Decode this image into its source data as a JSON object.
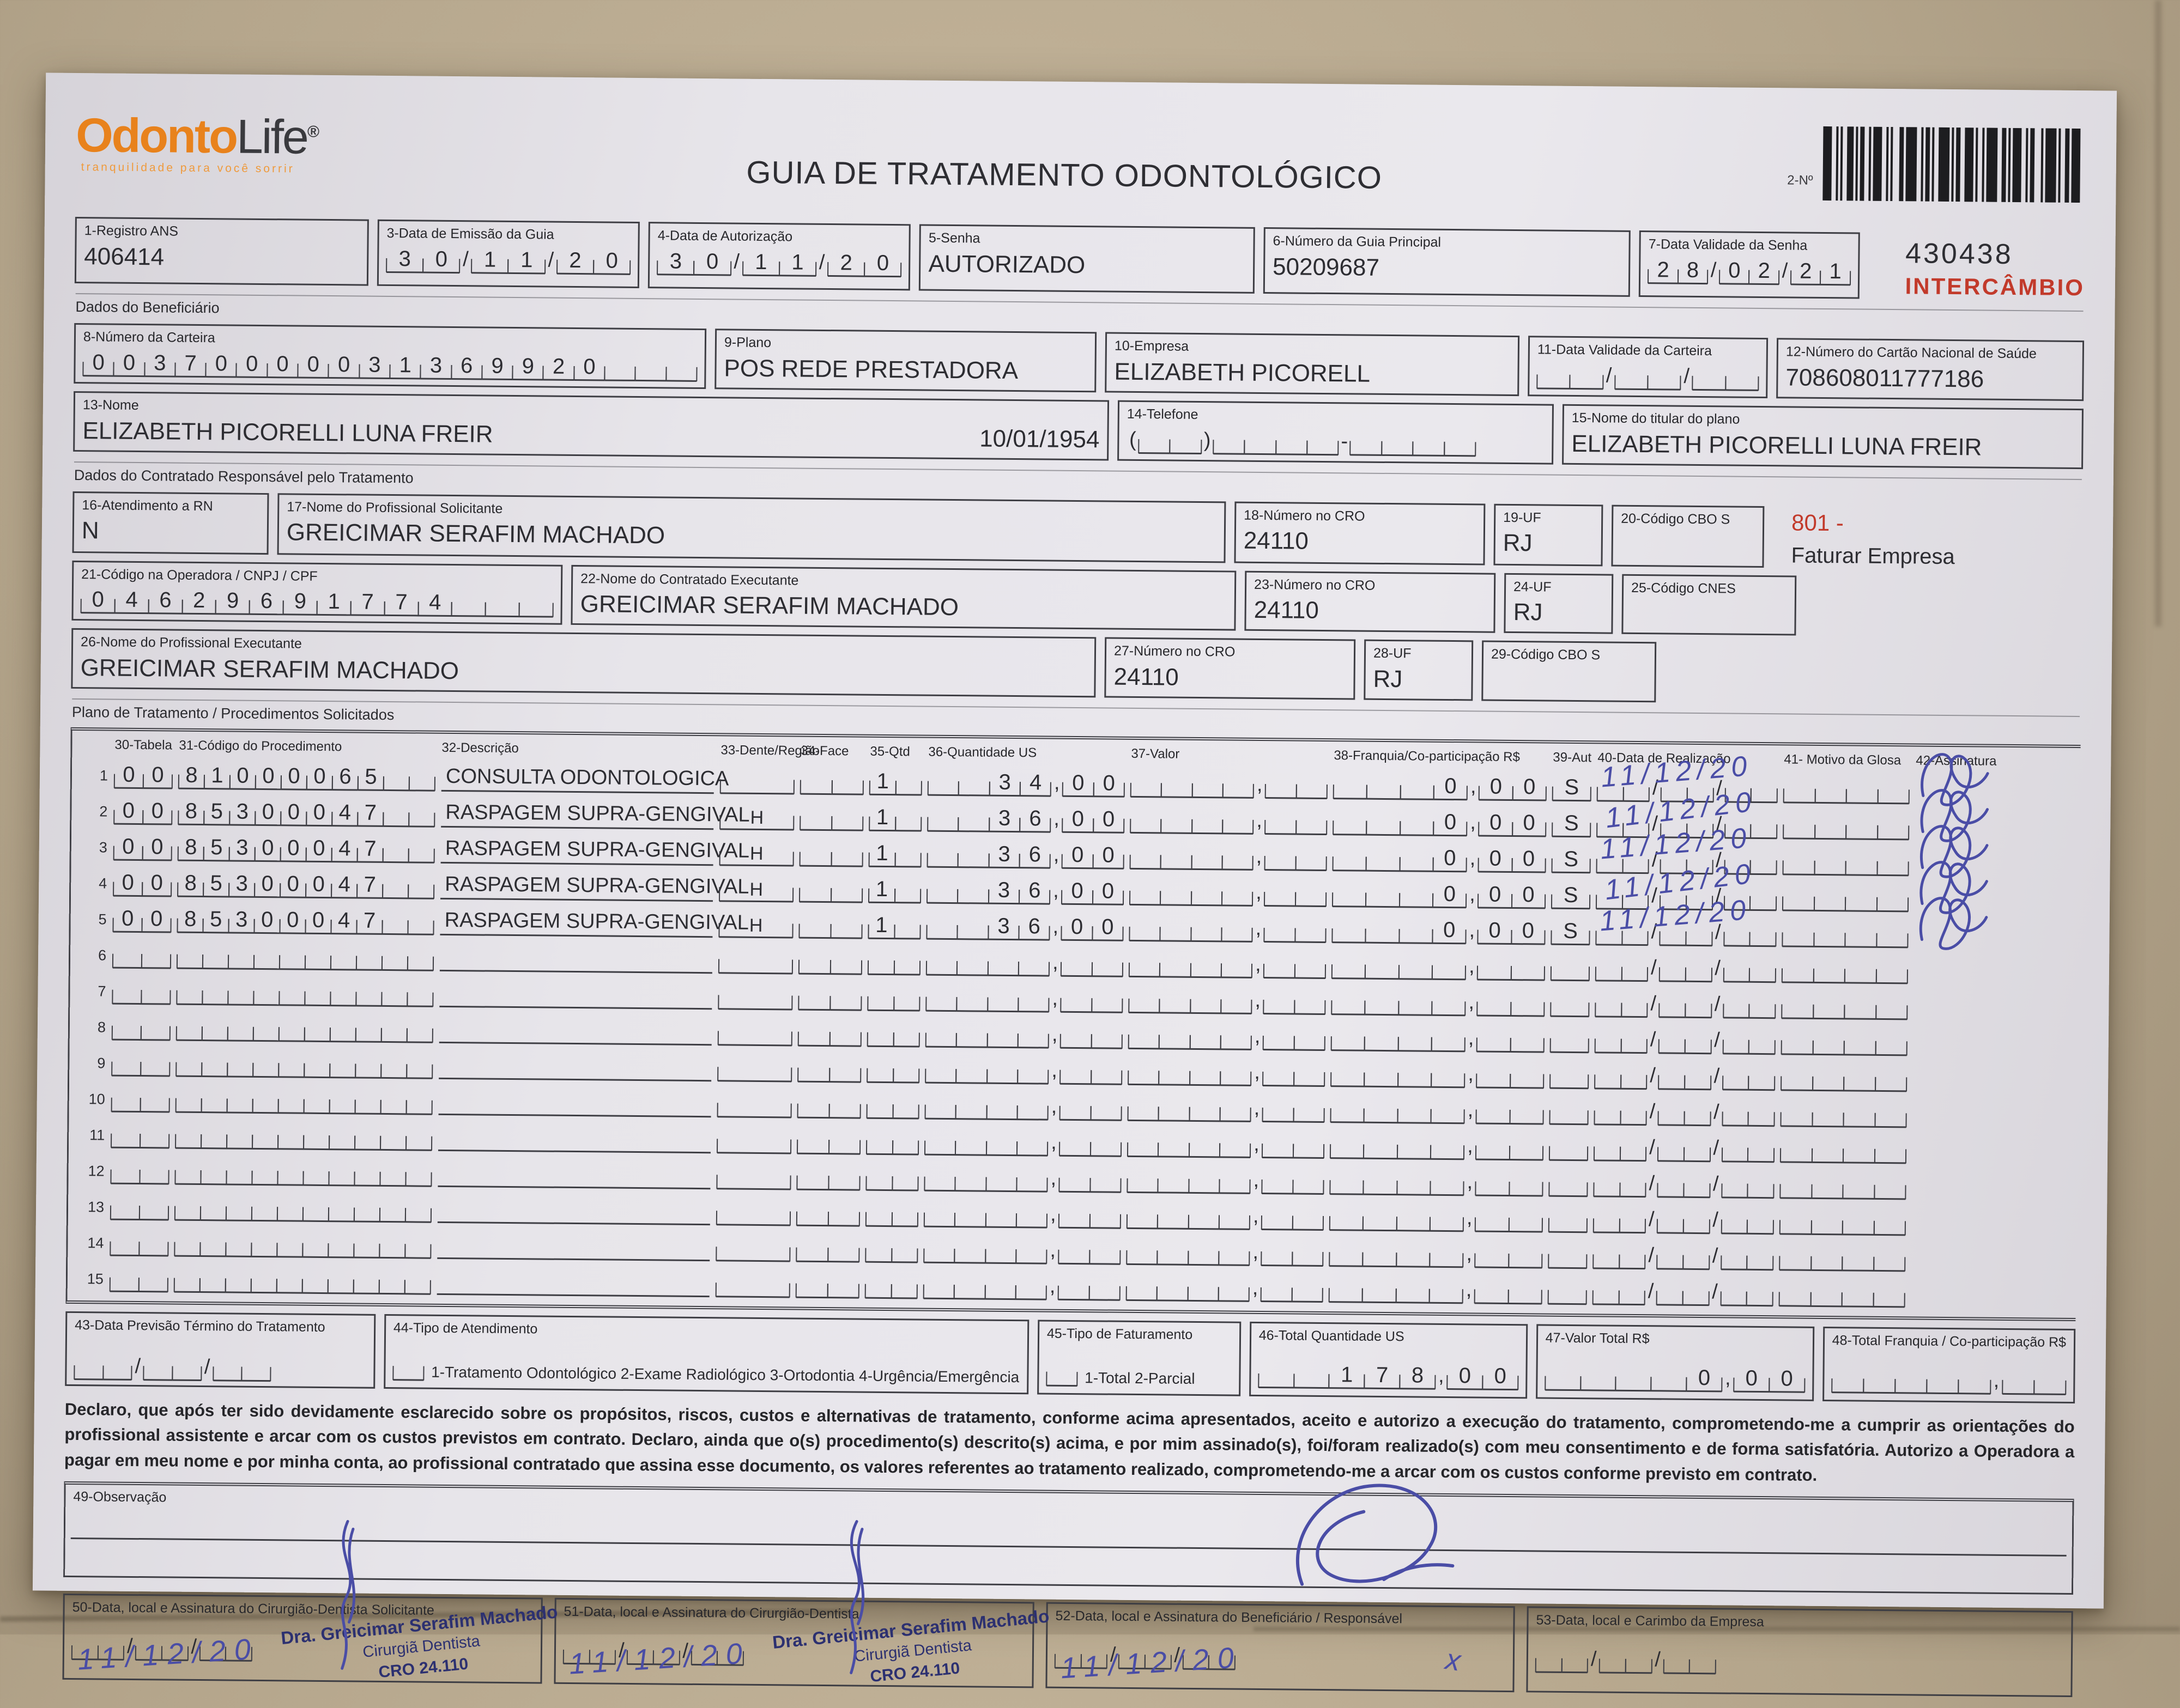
{
  "header": {
    "logo_odonto": "Odonto",
    "logo_life": "Life",
    "logo_reg": "®",
    "logo_tagline": "tranquilidade para você sorrir",
    "title": "GUIA DE TRATAMENTO ODONTOLÓGICO",
    "barcode_label": "2-Nº",
    "barcode_number": "430438",
    "intercambio_stamp": "INTERCÂMBIO"
  },
  "row1": {
    "registro_ans": {
      "label": "1-Registro ANS",
      "value": "406414"
    },
    "data_emissao": {
      "label": "3-Data de Emissão da Guia",
      "value": "30/11/20"
    },
    "data_autorizacao": {
      "label": "4-Data de Autorização",
      "value": "30/11/20"
    },
    "senha": {
      "label": "5-Senha",
      "value": "AUTORIZADO"
    },
    "numero_guia_principal": {
      "label": "6-Número da Guia Principal",
      "value": "50209687"
    },
    "validade_senha": {
      "label": "7-Data Validade da Senha",
      "value": "28/02/21"
    }
  },
  "beneficiario": {
    "section_label": "Dados do Beneficiário",
    "numero_carteira": {
      "label": "8-Número da Carteira",
      "value": "00370000031369920"
    },
    "plano": {
      "label": "9-Plano",
      "value": "POS REDE PRESTADORA"
    },
    "empresa": {
      "label": "10-Empresa",
      "value": "ELIZABETH PICORELL"
    },
    "validade_carteira": {
      "label": "11-Data Validade da Carteira",
      "value": ""
    },
    "cartao_nacional_saude": {
      "label": "12-Número do Cartão Nacional de Saúde",
      "value": "708608011777186"
    },
    "nome": {
      "label": "13-Nome",
      "value": "ELIZABETH PICORELLI LUNA FREIR",
      "nascimento": "10/01/1954"
    },
    "telefone": {
      "label": "14-Telefone",
      "value": ""
    },
    "titular": {
      "label": "15-Nome do titular do plano",
      "value": "ELIZABETH PICORELLI LUNA FREIR"
    }
  },
  "contratado": {
    "section_label": "Dados do Contratado Responsável pelo Tratamento",
    "atendimento_rn": {
      "label": "16-Atendimento a RN",
      "value": "N"
    },
    "prof_solicitante": {
      "label": "17-Nome do Profissional Solicitante",
      "value": "GREICIMAR SERAFIM MACHADO"
    },
    "cro_18": {
      "label": "18-Número no CRO",
      "value": "24110"
    },
    "uf_19": {
      "label": "19-UF",
      "value": "RJ"
    },
    "cbo_20": {
      "label": "20-Código CBO S",
      "value": ""
    },
    "nota_vermelha_codigo": "801 -",
    "nota_vermelha_texto": "Faturar Empresa",
    "codigo_operadora": {
      "label": "21-Código na Operadora / CNPJ / CPF",
      "value": "04629691774"
    },
    "contratado_executante": {
      "label": "22-Nome do Contratado Executante",
      "value": "GREICIMAR SERAFIM MACHADO"
    },
    "cro_23": {
      "label": "23-Número no CRO",
      "value": "24110"
    },
    "uf_24": {
      "label": "24-UF",
      "value": "RJ"
    },
    "cnes_25": {
      "label": "25-Código CNES",
      "value": ""
    },
    "prof_executante": {
      "label": "26-Nome do Profissional Executante",
      "value": "GREICIMAR SERAFIM MACHADO"
    },
    "cro_27": {
      "label": "27-Número no CRO",
      "value": "24110"
    },
    "uf_28": {
      "label": "28-UF",
      "value": "RJ"
    },
    "cbo_29": {
      "label": "29-Código CBO S",
      "value": ""
    }
  },
  "tratamento": {
    "section_label": "Plano de Tratamento / Procedimentos Solicitados",
    "headers": [
      "30-Tabela",
      "31-Código do Procedimento",
      "32-Descrição",
      "33-Dente/Região",
      "34-Face",
      "35-Qtd",
      "36-Quantidade US",
      "37-Valor",
      "38-Franquia/Co-participação R$",
      "39-Aut",
      "40-Data de Realização",
      "41- Motivo da Glosa",
      "42-Assinatura"
    ],
    "rows": [
      {
        "n": "1",
        "tabela": "00",
        "codigo": "81000065",
        "descricao": "CONSULTA ODONTOLOGICA",
        "dente": "",
        "face": "",
        "qtd": "1",
        "quantidade_us": "34,00",
        "valor": "",
        "franquia": "0,00",
        "aut": "S",
        "data_realizacao": "11/12/20",
        "glosa": "",
        "assinado": true
      },
      {
        "n": "2",
        "tabela": "00",
        "codigo": "85300047",
        "descricao": "RASPAGEM SUPRA-GENGIVAL",
        "dente": "HASE",
        "face": "",
        "qtd": "1",
        "quantidade_us": "36,00",
        "valor": "",
        "franquia": "0,00",
        "aut": "S",
        "data_realizacao": "11/12/20",
        "glosa": "",
        "assinado": true
      },
      {
        "n": "3",
        "tabela": "00",
        "codigo": "85300047",
        "descricao": "RASPAGEM SUPRA-GENGIVAL",
        "dente": "HASD",
        "face": "",
        "qtd": "1",
        "quantidade_us": "36,00",
        "valor": "",
        "franquia": "0,00",
        "aut": "S",
        "data_realizacao": "11/12/20",
        "glosa": "",
        "assinado": true
      },
      {
        "n": "4",
        "tabela": "00",
        "codigo": "85300047",
        "descricao": "RASPAGEM SUPRA-GENGIVAL",
        "dente": "HAID",
        "face": "",
        "qtd": "1",
        "quantidade_us": "36,00",
        "valor": "",
        "franquia": "0,00",
        "aut": "S",
        "data_realizacao": "11/12/20",
        "glosa": "",
        "assinado": true
      },
      {
        "n": "5",
        "tabela": "00",
        "codigo": "85300047",
        "descricao": "RASPAGEM SUPRA-GENGIVAL",
        "dente": "HAIE",
        "face": "",
        "qtd": "1",
        "quantidade_us": "36,00",
        "valor": "",
        "franquia": "0,00",
        "aut": "S",
        "data_realizacao": "11/12/20",
        "glosa": "",
        "assinado": true
      },
      {
        "n": "6",
        "tabela": "",
        "codigo": "",
        "descricao": "",
        "dente": "",
        "face": "",
        "qtd": "",
        "quantidade_us": "",
        "valor": "",
        "franquia": "",
        "aut": "",
        "data_realizacao": "",
        "glosa": "",
        "assinado": false
      },
      {
        "n": "7",
        "tabela": "",
        "codigo": "",
        "descricao": "",
        "dente": "",
        "face": "",
        "qtd": "",
        "quantidade_us": "",
        "valor": "",
        "franquia": "",
        "aut": "",
        "data_realizacao": "",
        "glosa": "",
        "assinado": false
      },
      {
        "n": "8",
        "tabela": "",
        "codigo": "",
        "descricao": "",
        "dente": "",
        "face": "",
        "qtd": "",
        "quantidade_us": "",
        "valor": "",
        "franquia": "",
        "aut": "",
        "data_realizacao": "",
        "glosa": "",
        "assinado": false
      },
      {
        "n": "9",
        "tabela": "",
        "codigo": "",
        "descricao": "",
        "dente": "",
        "face": "",
        "qtd": "",
        "quantidade_us": "",
        "valor": "",
        "franquia": "",
        "aut": "",
        "data_realizacao": "",
        "glosa": "",
        "assinado": false
      },
      {
        "n": "10",
        "tabela": "",
        "codigo": "",
        "descricao": "",
        "dente": "",
        "face": "",
        "qtd": "",
        "quantidade_us": "",
        "valor": "",
        "franquia": "",
        "aut": "",
        "data_realizacao": "",
        "glosa": "",
        "assinado": false
      },
      {
        "n": "11",
        "tabela": "",
        "codigo": "",
        "descricao": "",
        "dente": "",
        "face": "",
        "qtd": "",
        "quantidade_us": "",
        "valor": "",
        "franquia": "",
        "aut": "",
        "data_realizacao": "",
        "glosa": "",
        "assinado": false
      },
      {
        "n": "12",
        "tabela": "",
        "codigo": "",
        "descricao": "",
        "dente": "",
        "face": "",
        "qtd": "",
        "quantidade_us": "",
        "valor": "",
        "franquia": "",
        "aut": "",
        "data_realizacao": "",
        "glosa": "",
        "assinado": false
      },
      {
        "n": "13",
        "tabela": "",
        "codigo": "",
        "descricao": "",
        "dente": "",
        "face": "",
        "qtd": "",
        "quantidade_us": "",
        "valor": "",
        "franquia": "",
        "aut": "",
        "data_realizacao": "",
        "glosa": "",
        "assinado": false
      },
      {
        "n": "14",
        "tabela": "",
        "codigo": "",
        "descricao": "",
        "dente": "",
        "face": "",
        "qtd": "",
        "quantidade_us": "",
        "valor": "",
        "franquia": "",
        "aut": "",
        "data_realizacao": "",
        "glosa": "",
        "assinado": false
      },
      {
        "n": "15",
        "tabela": "",
        "codigo": "",
        "descricao": "",
        "dente": "",
        "face": "",
        "qtd": "",
        "quantidade_us": "",
        "valor": "",
        "franquia": "",
        "aut": "",
        "data_realizacao": "",
        "glosa": "",
        "assinado": false
      }
    ]
  },
  "rodape": {
    "previsao_termino": {
      "label": "43-Data Previsão Término do Tratamento",
      "value": ""
    },
    "tipo_atendimento": {
      "label": "44-Tipo de Atendimento",
      "options": "1-Tratamento Odontológico  2-Exame Radiológico  3-Ortodontia  4-Urgência/Emergência",
      "value": ""
    },
    "tipo_faturamento": {
      "label": "45-Tipo de Faturamento",
      "options": "1-Total  2-Parcial",
      "value": ""
    },
    "total_quantidade_us": {
      "label": "46-Total Quantidade US",
      "value": "178,00"
    },
    "valor_total": {
      "label": "47-Valor Total R$",
      "value": "0,00"
    },
    "total_franquia": {
      "label": "48-Total Franquia / Co-participação R$",
      "value": ""
    },
    "declaracao": "Declaro, que após ter sido devidamente esclarecido sobre os propósitos, riscos, custos e alternativas de tratamento, conforme acima apresentados, aceito e autorizo a execução do tratamento, comprometendo-me a cumprir as orientações do profissional assistente e arcar com os custos previstos em contrato. Declaro, ainda que o(s) procedimento(s) descrito(s) acima, e por mim assinado(s), foi/foram realizado(s) com meu consentimento e de forma satisfatória. Autorizo a Operadora a pagar em meu nome e por minha conta, ao profissional contratado que assina esse documento, os valores referentes ao tratamento realizado, comprometendo-me a arcar com os custos conforme previsto em contrato.",
    "observacao": {
      "label": "49-Observação",
      "value": ""
    }
  },
  "assinaturas": {
    "dentista_solicitante": {
      "label": "50-Data, local e Assinatura do Cirurgião-Dentista Solicitante",
      "data_manuscrita": "11/12/20"
    },
    "dentista": {
      "label": "51-Data, local e Assinatura do Cirurgião-Dentista",
      "data_manuscrita": "11/12/20"
    },
    "beneficiario": {
      "label": "52-Data, local e Assinatura do Beneficiário / Responsável",
      "data_manuscrita": "11/12/20"
    },
    "empresa": {
      "label": "53-Data, local e Carimbo da Empresa",
      "value": ""
    },
    "carimbo": {
      "nome": "Dra. Greicimar Serafim Machado",
      "funcao": "Cirurgiã Dentista",
      "cro": "CRO 24.110"
    }
  }
}
